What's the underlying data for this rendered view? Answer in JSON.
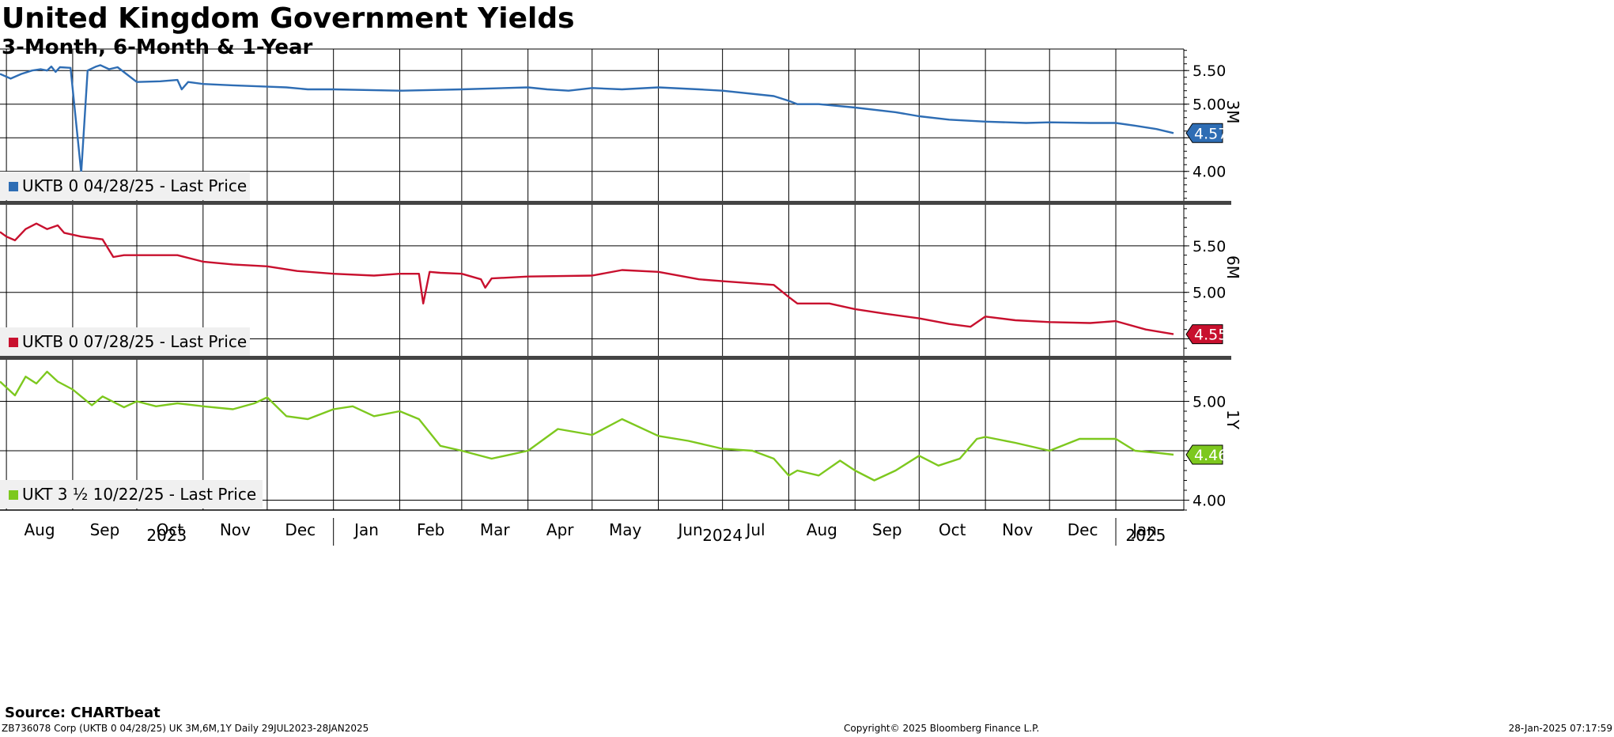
{
  "title": "United Kingdom Government Yields",
  "subtitle": "3-Month, 6-Month & 1-Year",
  "source": "Source: CHARTbeat",
  "footer": {
    "left": "ZB736078 Corp (UKTB 0 04/28/25) UK 3M,6M,1Y  Daily 29JUL2023-28JAN2025",
    "center": "Copyright© 2025 Bloomberg Finance L.P.",
    "right": "28-Jan-2025 07:17:59"
  },
  "chart_data": {
    "type": "line",
    "x_axis": {
      "months": [
        {
          "label": "Aug",
          "date": "2023-08-01"
        },
        {
          "label": "Sep",
          "date": "2023-09-01"
        },
        {
          "label": "Oct",
          "date": "2023-10-01"
        },
        {
          "label": "Nov",
          "date": "2023-11-01"
        },
        {
          "label": "Dec",
          "date": "2023-12-01"
        },
        {
          "label": "Jan",
          "date": "2024-01-01"
        },
        {
          "label": "Feb",
          "date": "2024-02-01"
        },
        {
          "label": "Mar",
          "date": "2024-03-01"
        },
        {
          "label": "Apr",
          "date": "2024-04-01"
        },
        {
          "label": "May",
          "date": "2024-05-01"
        },
        {
          "label": "Jun",
          "date": "2024-06-01"
        },
        {
          "label": "Jul",
          "date": "2024-07-01"
        },
        {
          "label": "Aug",
          "date": "2024-08-01"
        },
        {
          "label": "Sep",
          "date": "2024-09-01"
        },
        {
          "label": "Oct",
          "date": "2024-10-01"
        },
        {
          "label": "Nov",
          "date": "2024-11-01"
        },
        {
          "label": "Dec",
          "date": "2024-12-01"
        },
        {
          "label": "Jan",
          "date": "2025-01-01"
        }
      ],
      "years": [
        {
          "label": "2023",
          "date": "2023-10-15"
        },
        {
          "label": "2024",
          "date": "2024-07-01"
        },
        {
          "label": "2025",
          "date": "2025-01-15"
        }
      ],
      "year_dividers": [
        "2024-01-01",
        "2025-01-01"
      ],
      "range": [
        "2023-07-29",
        "2025-01-28"
      ]
    },
    "panels": [
      {
        "axis_title": "3M",
        "legend": "UKTB 0 04/28/25 - Last Price",
        "color": "#2E6DB4",
        "last_value": "4.57",
        "ylim": [
          3.55,
          5.82
        ],
        "yticks": [
          4.0,
          4.5,
          5.0,
          5.5
        ],
        "ytick_labels": [
          "4.00",
          "",
          "5.00",
          "5.50"
        ],
        "series": {
          "x": [
            "2023-07-29",
            "2023-08-03",
            "2023-08-08",
            "2023-08-13",
            "2023-08-17",
            "2023-08-20",
            "2023-08-22",
            "2023-08-24",
            "2023-08-26",
            "2023-08-31",
            "2023-09-05",
            "2023-09-08",
            "2023-09-12",
            "2023-09-14",
            "2023-09-18",
            "2023-09-22",
            "2023-10-01",
            "2023-10-12",
            "2023-10-20",
            "2023-10-22",
            "2023-10-25",
            "2023-11-01",
            "2023-11-15",
            "2023-12-01",
            "2023-12-10",
            "2023-12-20",
            "2024-01-01",
            "2024-02-01",
            "2024-03-01",
            "2024-04-01",
            "2024-04-10",
            "2024-04-20",
            "2024-05-01",
            "2024-05-15",
            "2024-06-01",
            "2024-06-20",
            "2024-07-01",
            "2024-07-25",
            "2024-08-01",
            "2024-08-05",
            "2024-08-15",
            "2024-09-01",
            "2024-09-20",
            "2024-10-01",
            "2024-10-15",
            "2024-11-01",
            "2024-11-20",
            "2024-12-01",
            "2024-12-20",
            "2025-01-01",
            "2025-01-10",
            "2025-01-20",
            "2025-01-28"
          ],
          "y": [
            5.45,
            5.38,
            5.45,
            5.5,
            5.52,
            5.5,
            5.56,
            5.48,
            5.55,
            5.54,
            3.98,
            5.5,
            5.56,
            5.58,
            5.52,
            5.55,
            5.33,
            5.34,
            5.36,
            5.22,
            5.33,
            5.3,
            5.28,
            5.26,
            5.25,
            5.22,
            5.22,
            5.2,
            5.22,
            5.25,
            5.22,
            5.2,
            5.24,
            5.22,
            5.25,
            5.22,
            5.2,
            5.12,
            5.05,
            5.0,
            5.0,
            4.95,
            4.88,
            4.82,
            4.77,
            4.74,
            4.72,
            4.73,
            4.72,
            4.72,
            4.68,
            4.63,
            4.57
          ]
        }
      },
      {
        "axis_title": "6M",
        "legend": "UKTB 0 07/28/25 - Last Price",
        "color": "#C8102E",
        "last_value": "4.55",
        "ylim": [
          4.3,
          5.95
        ],
        "yticks": [
          4.5,
          5.0,
          5.5
        ],
        "ytick_labels": [
          "",
          "5.00",
          "5.50"
        ],
        "series": {
          "x": [
            "2023-07-29",
            "2023-08-01",
            "2023-08-05",
            "2023-08-10",
            "2023-08-15",
            "2023-08-20",
            "2023-08-25",
            "2023-08-28",
            "2023-09-05",
            "2023-09-15",
            "2023-09-20",
            "2023-09-25",
            "2023-10-05",
            "2023-10-20",
            "2023-11-01",
            "2023-11-15",
            "2023-12-01",
            "2023-12-15",
            "2024-01-01",
            "2024-01-20",
            "2024-02-01",
            "2024-02-10",
            "2024-02-12",
            "2024-02-15",
            "2024-02-20",
            "2024-03-01",
            "2024-03-10",
            "2024-03-12",
            "2024-03-15",
            "2024-04-01",
            "2024-05-01",
            "2024-05-15",
            "2024-06-01",
            "2024-06-20",
            "2024-07-01",
            "2024-07-25",
            "2024-08-01",
            "2024-08-05",
            "2024-08-20",
            "2024-09-01",
            "2024-09-15",
            "2024-10-01",
            "2024-10-15",
            "2024-10-25",
            "2024-11-01",
            "2024-11-15",
            "2024-12-01",
            "2024-12-20",
            "2025-01-01",
            "2025-01-15",
            "2025-01-28"
          ],
          "y": [
            5.65,
            5.6,
            5.56,
            5.68,
            5.74,
            5.68,
            5.72,
            5.64,
            5.6,
            5.57,
            5.38,
            5.4,
            5.4,
            5.4,
            5.33,
            5.3,
            5.28,
            5.23,
            5.2,
            5.18,
            5.2,
            5.2,
            4.88,
            5.22,
            5.21,
            5.2,
            5.14,
            5.05,
            5.15,
            5.17,
            5.18,
            5.24,
            5.22,
            5.14,
            5.12,
            5.08,
            4.95,
            4.88,
            4.88,
            4.82,
            4.77,
            4.72,
            4.66,
            4.63,
            4.74,
            4.7,
            4.68,
            4.67,
            4.69,
            4.6,
            4.55
          ]
        }
      },
      {
        "axis_title": "1Y",
        "legend": "UKT 3 ½ 10/22/25 - Last Price",
        "color": "#7DC81E",
        "last_value": "4.46",
        "ylim": [
          3.9,
          5.42
        ],
        "yticks": [
          4.0,
          4.5,
          5.0
        ],
        "ytick_labels": [
          "4.00",
          "",
          "5.00"
        ],
        "series": {
          "x": [
            "2023-07-29",
            "2023-08-05",
            "2023-08-10",
            "2023-08-15",
            "2023-08-20",
            "2023-08-25",
            "2023-09-01",
            "2023-09-10",
            "2023-09-15",
            "2023-09-25",
            "2023-10-01",
            "2023-10-10",
            "2023-10-20",
            "2023-11-01",
            "2023-11-15",
            "2023-11-25",
            "2023-12-01",
            "2023-12-10",
            "2023-12-20",
            "2024-01-01",
            "2024-01-10",
            "2024-01-20",
            "2024-02-01",
            "2024-02-10",
            "2024-02-20",
            "2024-03-01",
            "2024-03-15",
            "2024-04-01",
            "2024-04-15",
            "2024-05-01",
            "2024-05-15",
            "2024-06-01",
            "2024-06-15",
            "2024-07-01",
            "2024-07-15",
            "2024-07-25",
            "2024-08-01",
            "2024-08-05",
            "2024-08-15",
            "2024-08-25",
            "2024-09-01",
            "2024-09-10",
            "2024-09-20",
            "2024-10-01",
            "2024-10-10",
            "2024-10-20",
            "2024-10-28",
            "2024-11-01",
            "2024-11-15",
            "2024-12-01",
            "2024-12-15",
            "2025-01-01",
            "2025-01-10",
            "2025-01-20",
            "2025-01-28"
          ],
          "y": [
            5.2,
            5.06,
            5.25,
            5.18,
            5.3,
            5.2,
            5.12,
            4.96,
            5.05,
            4.94,
            5.0,
            4.95,
            4.98,
            4.95,
            4.92,
            4.98,
            5.04,
            4.85,
            4.82,
            4.92,
            4.95,
            4.85,
            4.9,
            4.82,
            4.55,
            4.5,
            4.42,
            4.5,
            4.72,
            4.66,
            4.82,
            4.65,
            4.6,
            4.52,
            4.5,
            4.42,
            4.25,
            4.3,
            4.25,
            4.4,
            4.3,
            4.2,
            4.3,
            4.45,
            4.35,
            4.42,
            4.62,
            4.64,
            4.58,
            4.5,
            4.62,
            4.62,
            4.5,
            4.48,
            4.46
          ]
        }
      }
    ]
  }
}
